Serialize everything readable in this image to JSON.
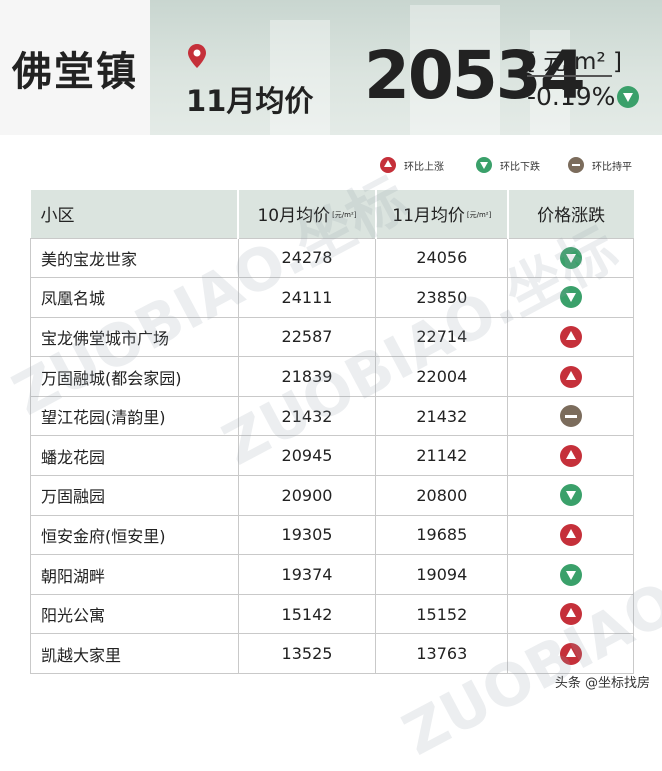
{
  "header": {
    "town": "佛堂镇",
    "month_label": "11月均价",
    "price": "20534",
    "unit": "[ 元/m² ]",
    "change": "-0.19%",
    "change_dir": "down"
  },
  "legend": {
    "up": "环比上涨",
    "down": "环比下跌",
    "flat": "环比持平"
  },
  "table": {
    "headers": {
      "name": "小区",
      "oct": "10月均价",
      "nov": "11月均价",
      "unit": "[元/m²]",
      "change": "价格涨跌"
    },
    "rows": [
      {
        "name": "美的宝龙世家",
        "oct": "24278",
        "nov": "24056",
        "dir": "down"
      },
      {
        "name": "凤凰名城",
        "oct": "24111",
        "nov": "23850",
        "dir": "down"
      },
      {
        "name": "宝龙佛堂城市广场",
        "oct": "22587",
        "nov": "22714",
        "dir": "up"
      },
      {
        "name": "万固融城(都会家园)",
        "oct": "21839",
        "nov": "22004",
        "dir": "up"
      },
      {
        "name": "望江花园(清韵里)",
        "oct": "21432",
        "nov": "21432",
        "dir": "flat"
      },
      {
        "name": "蟠龙花园",
        "oct": "20945",
        "nov": "21142",
        "dir": "up"
      },
      {
        "name": "万固融园",
        "oct": "20900",
        "nov": "20800",
        "dir": "down"
      },
      {
        "name": "恒安金府(恒安里)",
        "oct": "19305",
        "nov": "19685",
        "dir": "up"
      },
      {
        "name": "朝阳湖畔",
        "oct": "19374",
        "nov": "19094",
        "dir": "down"
      },
      {
        "name": "阳光公寓",
        "oct": "15142",
        "nov": "15152",
        "dir": "up"
      },
      {
        "name": "凯越大家里",
        "oct": "13525",
        "nov": "13763",
        "dir": "up"
      }
    ]
  },
  "watermark": "ZUOBIAO.坐标",
  "footer": "头条 @坐标找房",
  "colors": {
    "up": "#c5303a",
    "down": "#3aa06a",
    "flat": "#7b6c5c",
    "header_bg": "#dbe4df"
  }
}
